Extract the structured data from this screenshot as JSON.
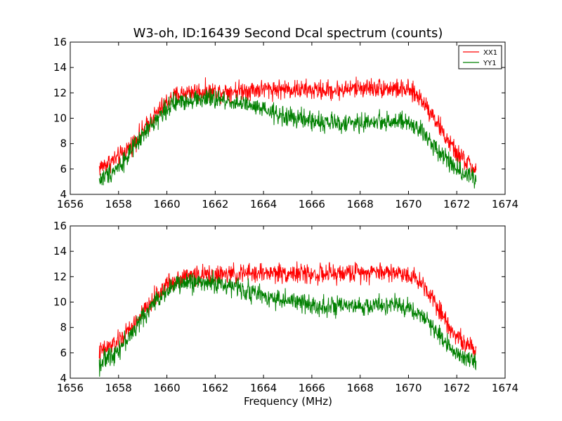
{
  "figure": {
    "title": "W3-oh, ID:16439 Second Dcal spectrum (counts)",
    "xlabel": "Frequency (MHz)"
  },
  "colors": {
    "XX1": "#ff0000",
    "YY1": "#008000",
    "axes": "#000000",
    "background": "#ffffff"
  },
  "chart_data": [
    {
      "type": "line",
      "panel": "top",
      "title": "W3-oh, ID:16439 Second Dcal spectrum (counts)",
      "xlabel": "",
      "ylabel": "",
      "xlim": [
        1656,
        1674
      ],
      "ylim": [
        4,
        16
      ],
      "xticks": [
        "1656",
        "1658",
        "1660",
        "1662",
        "1664",
        "1666",
        "1668",
        "1670",
        "1672",
        "1674"
      ],
      "yticks": [
        "4",
        "6",
        "8",
        "10",
        "12",
        "14",
        "16"
      ],
      "grid": false,
      "legend": "top-right",
      "x_range": [
        1657.2,
        1672.8
      ],
      "noise_amplitude": 0.7,
      "series": [
        {
          "name": "XX1",
          "color": "#ff0000",
          "x": [
            1657.2,
            1658.0,
            1658.5,
            1659.0,
            1659.5,
            1660.0,
            1660.5,
            1661.0,
            1662.0,
            1663.0,
            1664.0,
            1665.0,
            1666.0,
            1667.0,
            1668.0,
            1669.0,
            1670.0,
            1670.5,
            1671.0,
            1671.5,
            1672.0,
            1672.8
          ],
          "y": [
            6.1,
            6.9,
            7.8,
            9.0,
            10.2,
            11.3,
            11.9,
            12.1,
            12.1,
            12.2,
            12.3,
            12.3,
            12.2,
            12.2,
            12.4,
            12.4,
            12.2,
            11.6,
            10.3,
            8.6,
            7.2,
            5.9
          ]
        },
        {
          "name": "YY1",
          "color": "#008000",
          "x": [
            1657.2,
            1658.0,
            1658.5,
            1659.0,
            1659.5,
            1660.0,
            1660.5,
            1661.0,
            1662.0,
            1663.0,
            1664.0,
            1665.0,
            1666.0,
            1667.0,
            1668.0,
            1669.0,
            1670.0,
            1670.5,
            1671.0,
            1671.5,
            1672.0,
            1672.8
          ],
          "y": [
            5.1,
            6.2,
            7.3,
            8.6,
            9.8,
            10.8,
            11.3,
            11.5,
            11.5,
            11.2,
            10.6,
            10.1,
            9.8,
            9.6,
            9.6,
            9.8,
            9.6,
            9.0,
            8.0,
            7.0,
            6.0,
            5.3
          ]
        }
      ]
    },
    {
      "type": "line",
      "panel": "bottom",
      "title": "",
      "xlabel": "Frequency (MHz)",
      "ylabel": "",
      "xlim": [
        1656,
        1674
      ],
      "ylim": [
        4,
        16
      ],
      "xticks": [
        "1656",
        "1658",
        "1660",
        "1662",
        "1664",
        "1666",
        "1668",
        "1670",
        "1672",
        "1674"
      ],
      "yticks": [
        "4",
        "6",
        "8",
        "10",
        "12",
        "14",
        "16"
      ],
      "grid": false,
      "legend": "",
      "x_range": [
        1657.2,
        1672.8
      ],
      "noise_amplitude": 0.7,
      "series": [
        {
          "name": "XX1",
          "color": "#ff0000",
          "x": [
            1657.2,
            1658.0,
            1658.5,
            1659.0,
            1659.5,
            1660.0,
            1660.5,
            1661.0,
            1662.0,
            1663.0,
            1664.0,
            1665.0,
            1666.0,
            1667.0,
            1668.0,
            1669.0,
            1670.0,
            1670.5,
            1671.0,
            1671.5,
            1672.0,
            1672.8
          ],
          "y": [
            6.0,
            6.9,
            7.9,
            9.1,
            10.3,
            11.4,
            11.9,
            12.1,
            12.1,
            12.2,
            12.3,
            12.3,
            12.2,
            12.2,
            12.4,
            12.4,
            12.2,
            11.6,
            10.4,
            8.7,
            7.3,
            6.0
          ]
        },
        {
          "name": "YY1",
          "color": "#008000",
          "x": [
            1657.2,
            1658.0,
            1658.5,
            1659.0,
            1659.5,
            1660.0,
            1660.5,
            1661.0,
            1662.0,
            1663.0,
            1664.0,
            1665.0,
            1666.0,
            1667.0,
            1668.0,
            1669.0,
            1670.0,
            1670.5,
            1671.0,
            1671.5,
            1672.0,
            1672.8
          ],
          "y": [
            5.1,
            6.3,
            7.4,
            8.8,
            10.0,
            11.0,
            11.4,
            11.6,
            11.5,
            11.1,
            10.5,
            10.1,
            9.8,
            9.6,
            9.6,
            9.8,
            9.6,
            9.0,
            8.0,
            7.0,
            6.0,
            5.3
          ]
        }
      ]
    }
  ]
}
